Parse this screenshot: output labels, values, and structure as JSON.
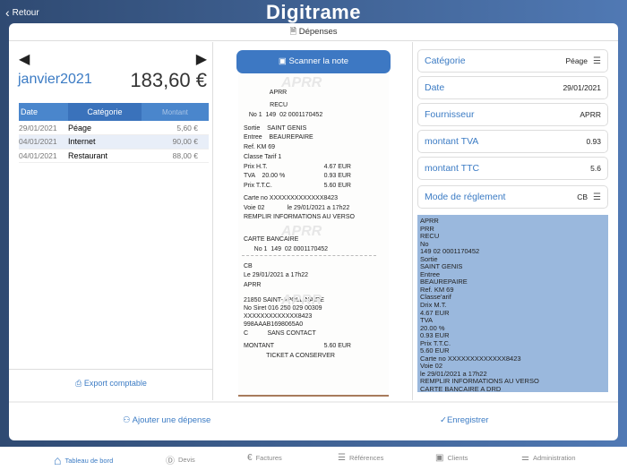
{
  "header": {
    "back_label": "Retour",
    "logo": "Digitrame"
  },
  "page_title": "Dépenses",
  "left": {
    "month": "janvier2021",
    "total": "183,60 €",
    "columns": [
      "Date",
      "Catégorie",
      "Montant"
    ],
    "rows": [
      {
        "date": "29/01/2021",
        "category": "Péage",
        "amount": "5,60 €"
      },
      {
        "date": "04/01/2021",
        "category": "Internet",
        "amount": "90,00 €"
      },
      {
        "date": "04/01/2021",
        "category": "Restaurant",
        "amount": "88,00 €"
      }
    ],
    "export_label": "Export comptable"
  },
  "scan_label": "Scanner la note",
  "receipt": {
    "watermark": "APRR",
    "lines": [
      {
        "t": "               APRR"
      },
      {
        "t": "               RECU"
      },
      {
        "t": "   No 1  149  02 0001170452"
      },
      {
        "t": "Sortie    SAINT GENIS"
      },
      {
        "t": "Entree    BEAUREPAIRE"
      },
      {
        "t": "Ref. KM 69"
      },
      {
        "t": "Classe Tarif 1"
      },
      {
        "t": "Prix H.T.",
        "r": "4.67 EUR"
      },
      {
        "t": "TVA    20.00 %",
        "r": "0.93 EUR"
      },
      {
        "t": "Prix T.T.C.",
        "r": "5.60 EUR"
      },
      {
        "t": "Carte no XXXXXXXXXXXXX8423"
      },
      {
        "t": "Voie 02             le 29/01/2021 a 17h22"
      },
      {
        "t": "REMPLIR INFORMATIONS AU VERSO"
      },
      {
        "t": "CARTE BANCAIRE"
      },
      {
        "t": "      No 1  149  02 0001170452"
      },
      {
        "t": "CB"
      },
      {
        "t": "Le 29/01/2021 a 17h22"
      },
      {
        "t": "APRR"
      },
      {
        "t": "21850 SAINT-APOLLINAIRE"
      },
      {
        "t": "No Siret 016 250 029 00309"
      },
      {
        "t": "XXXXXXXXXXXXX8423"
      },
      {
        "t": "998AAAB1698065A0"
      },
      {
        "t": "C           SANS CONTACT"
      },
      {
        "t": "MONTANT",
        "r": "5.60 EUR"
      },
      {
        "t": "             TICKET A CONSERVER"
      }
    ]
  },
  "form": {
    "fields": [
      {
        "label": "Catégorie",
        "value": "Péage",
        "menu": true
      },
      {
        "label": "Date",
        "value": "29/01/2021"
      },
      {
        "label": "Fournisseur",
        "value": "APRR"
      },
      {
        "label": "montant TVA",
        "value": "0.93"
      },
      {
        "label": "montant TTC",
        "value": "5.6"
      },
      {
        "label": "Mode de réglement",
        "value": "CB",
        "menu": true
      }
    ],
    "ocr_text": "APRR\nPRR\nRECU\nNo\n149 02 0001170452\nSortie\nSAINT GENIS\nEntree\nBEAUREPAIRE\nRef. KM 69\nClasse'arif\nDrix M.T.\n4.67 EUR\nTVA\n20.00 %\n0.93 EUR\nPrix T.T.C.\n5.60 EUR\nCarte no XXXXXXXXXXXXX8423\nVoie 02\nle 29/01/2021 a 17h22\nREMPLIR INFORMATIONS AU VERSO\nCARTE BANCAIRE A DRD"
  },
  "actions": {
    "add_label": "Ajouter une dépense",
    "save_label": "Enregistrer"
  },
  "tabs": [
    {
      "label": "Tableau de bord",
      "icon": "home-icon",
      "active": true
    },
    {
      "label": "Devis",
      "icon": "devis-icon"
    },
    {
      "label": "Factures",
      "icon": "euro-icon"
    },
    {
      "label": "Références",
      "icon": "list-icon"
    },
    {
      "label": "Clients",
      "icon": "client-icon"
    },
    {
      "label": "Administration",
      "icon": "sliders-icon"
    }
  ],
  "colors": {
    "accent": "#3b7bc4",
    "header_start": "#2f4a72",
    "header_end": "#5079b4",
    "ocr_bg": "#9ab8dd"
  }
}
